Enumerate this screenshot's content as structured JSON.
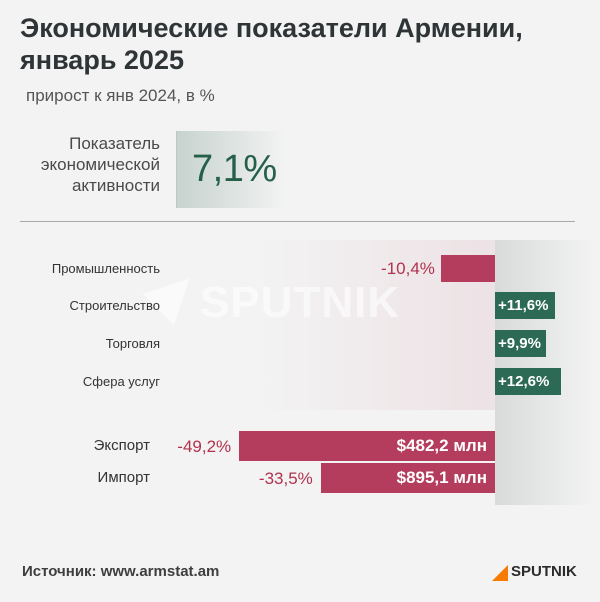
{
  "header": {
    "title": "Экономические показатели Армении, январь 2025",
    "subtitle": "прирост к янв 2024, в %"
  },
  "kpi": {
    "label": "Показатель экономической активности",
    "value_text": "7,1%"
  },
  "watermark": "SPUTNIK",
  "chart_data": {
    "type": "bar",
    "categories": [
      "Промышленность",
      "Строительство",
      "Торговля",
      "Сфера услуг"
    ],
    "values": [
      -10.4,
      11.6,
      9.9,
      12.6
    ],
    "value_labels": [
      "-10,4%",
      "+11,6%",
      "+9,9%",
      "+12,6%"
    ],
    "trade": [
      {
        "label": "Экспорт",
        "change": -49.2,
        "change_label": "-49,2%",
        "amount": 482.2,
        "amount_label": "$482,2 млн"
      },
      {
        "label": "Импорт",
        "change": -33.5,
        "change_label": "-33,5%",
        "amount": 895.1,
        "amount_label": "$895,1 млн"
      }
    ],
    "colors": {
      "negative": "#b43d5d",
      "positive": "#2d6a55",
      "kpi": "#27604a"
    }
  },
  "footer": {
    "source": "Источник: www.armstat.am",
    "logo": "SPUTNIK",
    "logo_color": "#f57c00"
  }
}
